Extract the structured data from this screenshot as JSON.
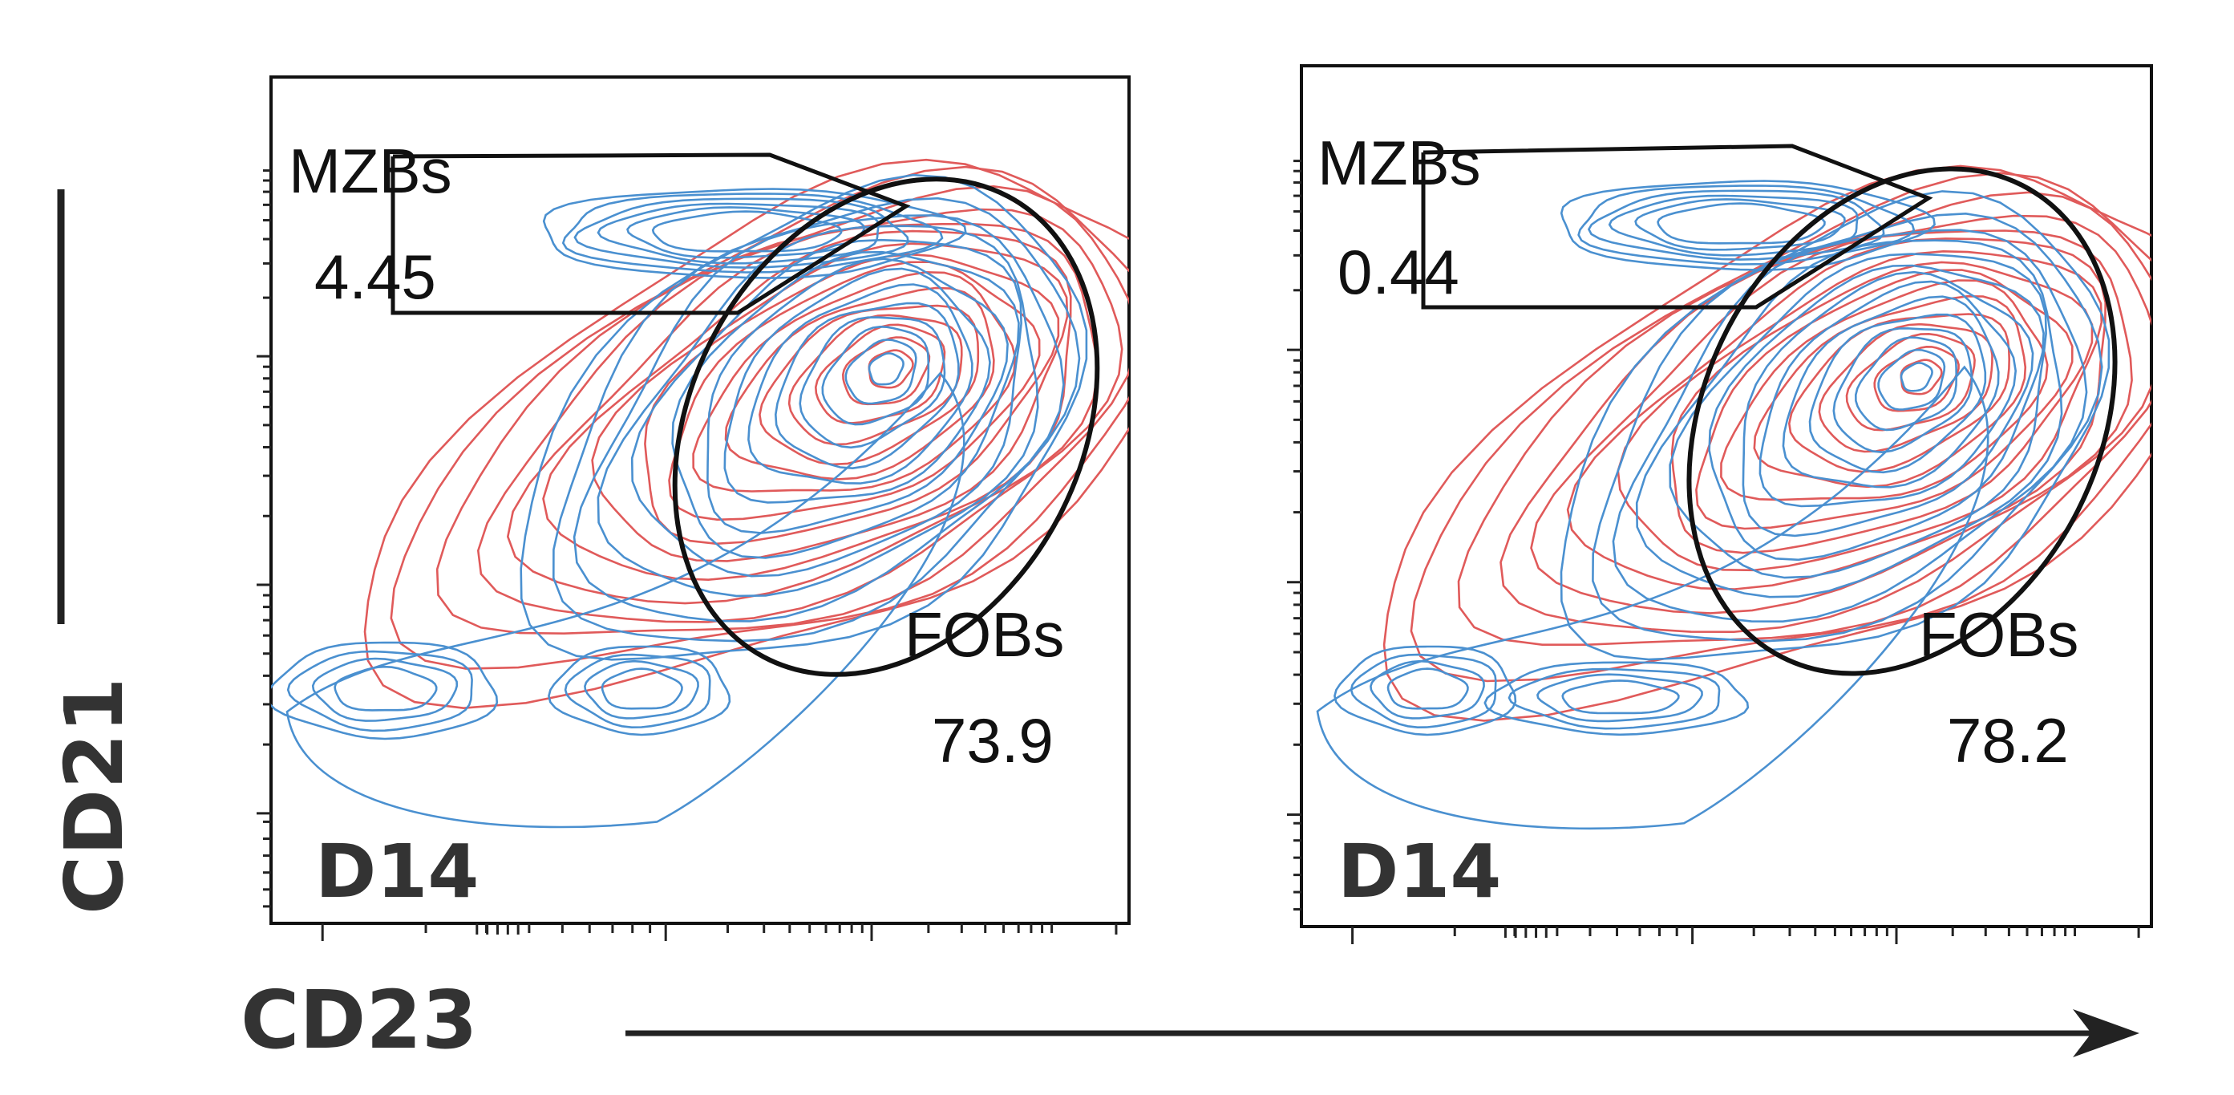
{
  "chart_data": [
    {
      "type": "contour",
      "sample_label": "D14",
      "series_colors": [
        "#e05a5a",
        "#4a90d0"
      ],
      "xlabel": "CD23",
      "ylabel": "CD21",
      "x_scale": "log",
      "y_scale": "log",
      "gates": [
        {
          "name": "MZBs",
          "value": "4.45"
        },
        {
          "name": "FOBs",
          "value": "73.9"
        }
      ]
    },
    {
      "type": "contour",
      "sample_label": "D14",
      "series_colors": [
        "#e05a5a",
        "#4a90d0"
      ],
      "xlabel": "CD23",
      "ylabel": "CD21",
      "x_scale": "log",
      "y_scale": "log",
      "gates": [
        {
          "name": "MZBs",
          "value": "0.44"
        },
        {
          "name": "FOBs",
          "value": "78.2"
        }
      ]
    }
  ],
  "axis_titles": {
    "x": "CD23",
    "y": "CD21"
  },
  "colors": {
    "red_series": "#e05a5a",
    "blue_series": "#4a90d0",
    "gate": "#111111",
    "axis": "#222222"
  }
}
